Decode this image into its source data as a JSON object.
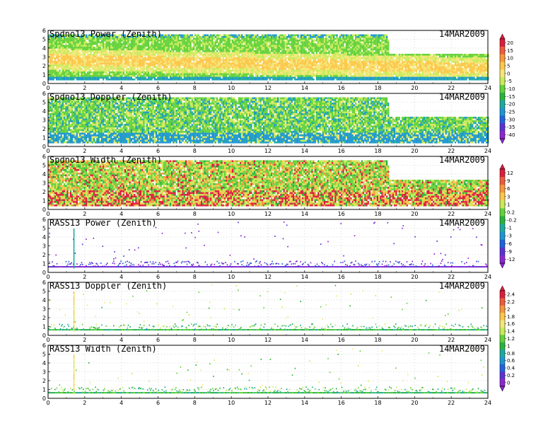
{
  "chart_data": [
    {
      "type": "heatmap",
      "title": "Spdno13 Power (Zenith)",
      "date": "14MAR2009",
      "xlim": [
        0,
        24
      ],
      "ylim": [
        0,
        6
      ],
      "x_ticks": [
        "0",
        "2",
        "4",
        "6",
        "8",
        "10",
        "12",
        "14",
        "16",
        "18",
        "20",
        "22",
        "24"
      ],
      "y_ticks": [
        "0",
        "1",
        "2",
        "3",
        "4",
        "5",
        "6"
      ],
      "data_top_km": [
        [
          0,
          5.5
        ],
        [
          18.5,
          5.5
        ],
        [
          18.6,
          3.3
        ],
        [
          24,
          3.3
        ]
      ],
      "colorbar": "cb1",
      "fill": "dense"
    },
    {
      "type": "heatmap",
      "title": "Spdno13 Doppler (Zenith)",
      "date": "14MAR2009",
      "xlim": [
        0,
        24
      ],
      "ylim": [
        0,
        6
      ],
      "x_ticks": [
        "0",
        "2",
        "4",
        "6",
        "8",
        "10",
        "12",
        "14",
        "16",
        "18",
        "20",
        "22",
        "24"
      ],
      "y_ticks": [
        "0",
        "1",
        "2",
        "3",
        "4",
        "5",
        "6"
      ],
      "data_top_km": [
        [
          0,
          5.5
        ],
        [
          18.5,
          5.5
        ],
        [
          18.6,
          3.3
        ],
        [
          24,
          3.3
        ]
      ],
      "colorbar": "cb1",
      "fill": "dense"
    },
    {
      "type": "heatmap",
      "title": "Spdno13 Width (Zenith)",
      "date": "14MAR2009",
      "xlim": [
        0,
        24
      ],
      "ylim": [
        0,
        6
      ],
      "x_ticks": [
        "0",
        "2",
        "4",
        "6",
        "8",
        "10",
        "12",
        "14",
        "16",
        "18",
        "20",
        "22",
        "24"
      ],
      "y_ticks": [
        "0",
        "1",
        "2",
        "3",
        "4",
        "5",
        "6"
      ],
      "data_top_km": [
        [
          0,
          5.5
        ],
        [
          18.5,
          5.5
        ],
        [
          18.6,
          3.3
        ],
        [
          24,
          3.3
        ]
      ],
      "colorbar": "cb2",
      "fill": "dense"
    },
    {
      "type": "heatmap",
      "title": "RASS13 Power (Zenith)",
      "date": "14MAR2009",
      "xlim": [
        0,
        24
      ],
      "ylim": [
        0,
        6
      ],
      "x_ticks": [
        "0",
        "2",
        "4",
        "6",
        "8",
        "10",
        "12",
        "14",
        "16",
        "18",
        "20",
        "22",
        "24"
      ],
      "y_ticks": [
        "0",
        "1",
        "2",
        "3",
        "4",
        "5",
        "6"
      ],
      "data_top_km": [
        [
          0,
          1.5
        ],
        [
          24,
          1.5
        ]
      ],
      "colorbar": "cb2",
      "fill": "sparse"
    },
    {
      "type": "heatmap",
      "title": "RASS13 Doppler (Zenith)",
      "date": "14MAR2009",
      "xlim": [
        0,
        24
      ],
      "ylim": [
        0,
        6
      ],
      "x_ticks": [
        "0",
        "2",
        "4",
        "6",
        "8",
        "10",
        "12",
        "14",
        "16",
        "18",
        "20",
        "22",
        "24"
      ],
      "y_ticks": [
        "0",
        "1",
        "2",
        "3",
        "4",
        "5",
        "6"
      ],
      "data_top_km": [
        [
          0,
          1.5
        ],
        [
          24,
          1.5
        ]
      ],
      "colorbar": "cb3",
      "fill": "sparse"
    },
    {
      "type": "heatmap",
      "title": "RASS13 Width (Zenith)",
      "date": "14MAR2009",
      "xlim": [
        0,
        24
      ],
      "ylim": [
        0,
        6
      ],
      "x_ticks": [
        "0",
        "2",
        "4",
        "6",
        "8",
        "10",
        "12",
        "14",
        "16",
        "18",
        "20",
        "22",
        "24"
      ],
      "y_ticks": [
        "0",
        "1",
        "2",
        "3",
        "4",
        "5",
        "6"
      ],
      "data_top_km": [
        [
          0,
          1.5
        ],
        [
          24,
          1.5
        ]
      ],
      "colorbar": "cb3",
      "fill": "sparse"
    }
  ],
  "colorbars": {
    "cb1": {
      "labels": [
        "20",
        "15",
        "10",
        "5",
        "0",
        "-5",
        "-10",
        "-15",
        "-20",
        "-25",
        "-30",
        "-35",
        "-40"
      ],
      "colors": [
        "#dc1e3c",
        "#f05a3c",
        "#f8963c",
        "#fcc84a",
        "#f5e678",
        "#c8eb5a",
        "#64d23c",
        "#28b43c",
        "#1eaaa0",
        "#1e96d2",
        "#1e64dc",
        "#5a32d2",
        "#8c28d2"
      ]
    },
    "cb2": {
      "labels": [
        "12",
        "9",
        "6",
        "3",
        "1",
        "0.2",
        "-0.2",
        "-1",
        "-3",
        "-6",
        "-9",
        "-12"
      ],
      "colors": [
        "#dc1e3c",
        "#f05a3c",
        "#f8963c",
        "#fcc84a",
        "#c8eb5a",
        "#64d23c",
        "#28b43c",
        "#1eaaa0",
        "#1e96d2",
        "#1e64dc",
        "#5a32d2",
        "#8c28d2"
      ]
    },
    "cb3": {
      "labels": [
        "2.4",
        "2.2",
        "2",
        "1.8",
        "1.6",
        "1.4",
        "1.2",
        "1",
        "0.8",
        "0.6",
        "0.4",
        "0.2",
        "0"
      ],
      "colors": [
        "#dc1e3c",
        "#f05a3c",
        "#f8963c",
        "#fcc84a",
        "#f5e678",
        "#c8eb5a",
        "#64d23c",
        "#28b43c",
        "#1eaaa0",
        "#1e96d2",
        "#1e64dc",
        "#5a32d2",
        "#8c28d2"
      ]
    }
  }
}
